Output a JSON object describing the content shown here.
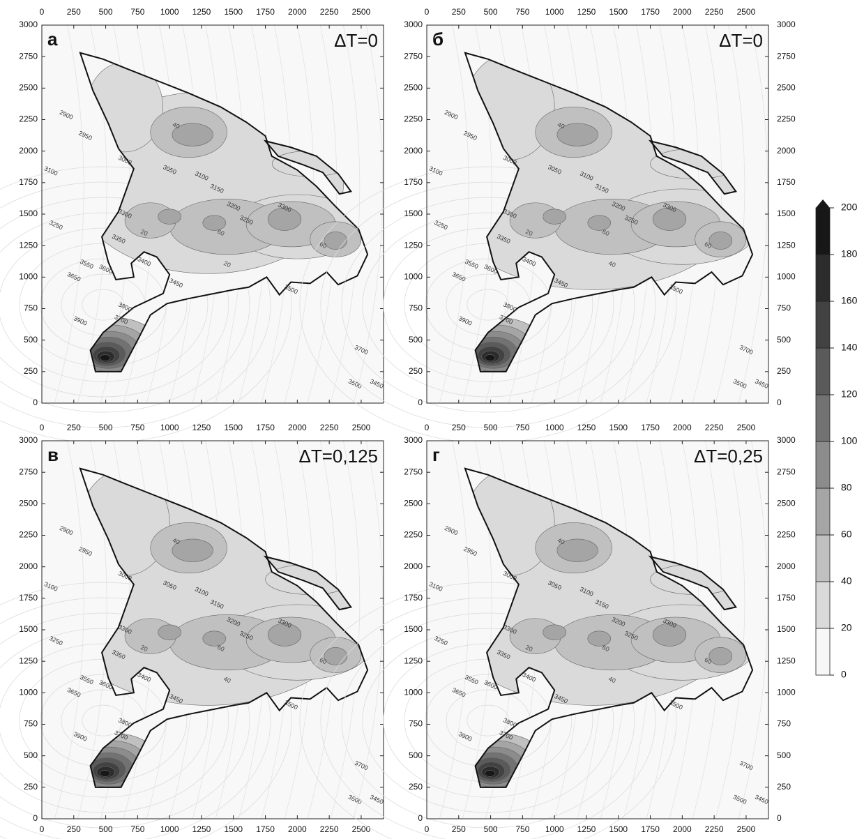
{
  "chart_data": [
    {
      "type": "contour",
      "panel_label": "а",
      "annotation": "ΔT=0",
      "xlim": [
        0,
        2675
      ],
      "ylim": [
        0,
        3000
      ],
      "xticks": [
        0,
        250,
        500,
        750,
        1000,
        1250,
        1500,
        1750,
        2000,
        2250,
        2500
      ],
      "yticks": [
        0,
        250,
        500,
        750,
        1000,
        1250,
        1500,
        1750,
        2000,
        2250,
        2500,
        2750,
        3000
      ],
      "contour_labels": [
        2900,
        2950,
        3000,
        3050,
        3100,
        3100,
        3150,
        3200,
        3250,
        3250,
        3300,
        3300,
        3350,
        3400,
        3450,
        3500,
        3550,
        3600,
        3650,
        3700,
        3800,
        3900,
        3700,
        3450,
        3500,
        20,
        40,
        60,
        60,
        20
      ]
    },
    {
      "type": "contour",
      "panel_label": "б",
      "annotation": "ΔT=0",
      "xlim": [
        0,
        2675
      ],
      "ylim": [
        0,
        3000
      ],
      "xticks": [
        0,
        250,
        500,
        750,
        1000,
        1250,
        1500,
        1750,
        2000,
        2250,
        2500
      ],
      "yticks": [
        0,
        250,
        500,
        750,
        1000,
        1250,
        1500,
        1750,
        2000,
        2250,
        2500,
        2750,
        3000
      ],
      "contour_labels": [
        2900,
        2950,
        3000,
        3050,
        3100,
        3100,
        3150,
        3200,
        3250,
        3250,
        3300,
        3300,
        3350,
        3400,
        3450,
        3500,
        3550,
        3600,
        3650,
        3700,
        3800,
        3900,
        3700,
        3450,
        3500,
        20,
        40,
        60,
        60,
        40
      ]
    },
    {
      "type": "contour",
      "panel_label": "в",
      "annotation": "ΔT=0,125",
      "xlim": [
        0,
        2675
      ],
      "ylim": [
        0,
        3000
      ],
      "xticks": [
        0,
        250,
        500,
        750,
        1000,
        1250,
        1500,
        1750,
        2000,
        2250,
        2500
      ],
      "yticks": [
        0,
        250,
        500,
        750,
        1000,
        1250,
        1500,
        1750,
        2000,
        2250,
        2500,
        2750,
        3000
      ],
      "contour_labels": [
        2900,
        2950,
        3000,
        3050,
        3100,
        3100,
        3150,
        3200,
        3250,
        3250,
        3300,
        3300,
        3350,
        3400,
        3450,
        3500,
        3550,
        3600,
        3650,
        3700,
        3800,
        3900,
        3700,
        3450,
        3500,
        20,
        40,
        60,
        60,
        40
      ]
    },
    {
      "type": "contour",
      "panel_label": "г",
      "annotation": "ΔT=0,25",
      "xlim": [
        0,
        2675
      ],
      "ylim": [
        0,
        3000
      ],
      "xticks": [
        0,
        250,
        500,
        750,
        1000,
        1250,
        1500,
        1750,
        2000,
        2250,
        2500
      ],
      "yticks": [
        0,
        250,
        500,
        750,
        1000,
        1250,
        1500,
        1750,
        2000,
        2250,
        2500,
        2750,
        3000
      ],
      "contour_labels": [
        2900,
        2950,
        3000,
        3050,
        3100,
        3100,
        3150,
        3200,
        3250,
        3250,
        3300,
        3300,
        3350,
        3400,
        3450,
        3500,
        3550,
        3600,
        3650,
        3700,
        3800,
        3900,
        3700,
        3450,
        3500,
        20,
        40,
        60,
        60,
        40
      ]
    }
  ],
  "colorbar": {
    "levels": [
      0,
      20,
      40,
      60,
      80,
      100,
      120,
      140,
      160,
      180,
      200
    ],
    "colors": [
      "#f7f7f7",
      "#dadada",
      "#c0c0c0",
      "#a5a5a5",
      "#8c8c8c",
      "#727272",
      "#5a5a5a",
      "#424242",
      "#2c2c2c",
      "#171717"
    ]
  }
}
